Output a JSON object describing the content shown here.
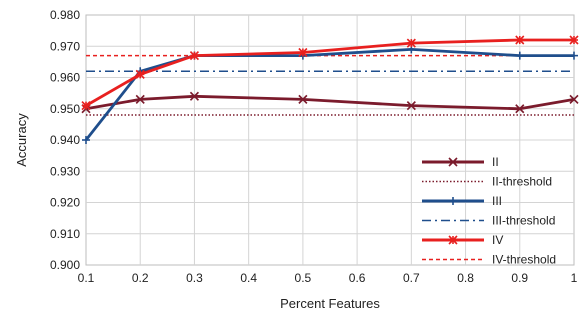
{
  "chart_data": {
    "type": "line",
    "title": "",
    "xlabel": "Percent Features",
    "ylabel": "Accuracy",
    "xlim": [
      0.1,
      1.0
    ],
    "ylim": [
      0.9,
      0.98
    ],
    "x_ticks": [
      "0.1",
      "0.2",
      "0.3",
      "0.4",
      "0.5",
      "0.6",
      "0.7",
      "0.8",
      "0.9",
      "1"
    ],
    "y_ticks": [
      "0.900",
      "0.910",
      "0.920",
      "0.930",
      "0.940",
      "0.950",
      "0.960",
      "0.970",
      "0.980"
    ],
    "grid": "both",
    "legend_position": "bottom-right",
    "series": [
      {
        "name": "II",
        "style": "line-x-marker",
        "color": "#7b1b2c",
        "x": [
          0.1,
          0.2,
          0.3,
          0.5,
          0.7,
          0.9,
          1.0
        ],
        "values": [
          0.95,
          0.953,
          0.954,
          0.953,
          0.951,
          0.95,
          0.953
        ]
      },
      {
        "name": "II-threshold",
        "style": "dotted",
        "color": "#7b1b2c",
        "value": 0.948
      },
      {
        "name": "III",
        "style": "line-plus-marker",
        "color": "#1f4e8c",
        "x": [
          0.1,
          0.2,
          0.3,
          0.5,
          0.7,
          0.9,
          1.0
        ],
        "values": [
          0.94,
          0.962,
          0.967,
          0.967,
          0.969,
          0.967,
          0.967
        ]
      },
      {
        "name": "III-threshold",
        "style": "dash-dot",
        "color": "#1f4e8c",
        "value": 0.962
      },
      {
        "name": "IV",
        "style": "line-star-marker",
        "color": "#e8201f",
        "x": [
          0.1,
          0.2,
          0.3,
          0.5,
          0.7,
          0.9,
          1.0
        ],
        "values": [
          0.951,
          0.961,
          0.967,
          0.968,
          0.971,
          0.972,
          0.972
        ]
      },
      {
        "name": "IV-threshold",
        "style": "dashed",
        "color": "#e8201f",
        "value": 0.967
      }
    ]
  }
}
